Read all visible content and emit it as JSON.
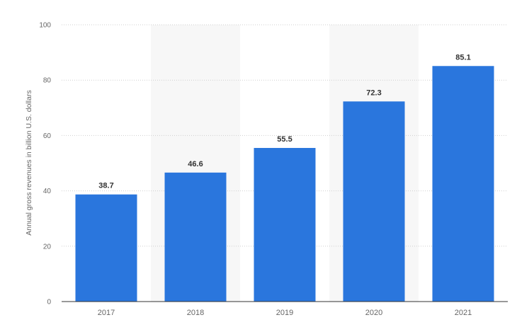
{
  "chart_data": {
    "type": "bar",
    "categories": [
      "2017",
      "2018",
      "2019",
      "2020",
      "2021"
    ],
    "values": [
      38.7,
      46.6,
      55.5,
      72.3,
      85.1
    ],
    "data_labels": [
      "38.7",
      "46.6",
      "55.5",
      "72.3",
      "85.1"
    ],
    "title": "",
    "xlabel": "",
    "ylabel": "Annual gross revenues in billion U.S. dollars",
    "ylim": [
      0,
      100
    ],
    "yticks": [
      0,
      20,
      40,
      60,
      80,
      100
    ],
    "ytick_labels": [
      "0",
      "20",
      "40",
      "60",
      "80",
      "100"
    ],
    "grid": true,
    "bar_color": "#2a76dd",
    "band_color": "#f7f7f7",
    "grid_color": "#cfcfcf"
  }
}
